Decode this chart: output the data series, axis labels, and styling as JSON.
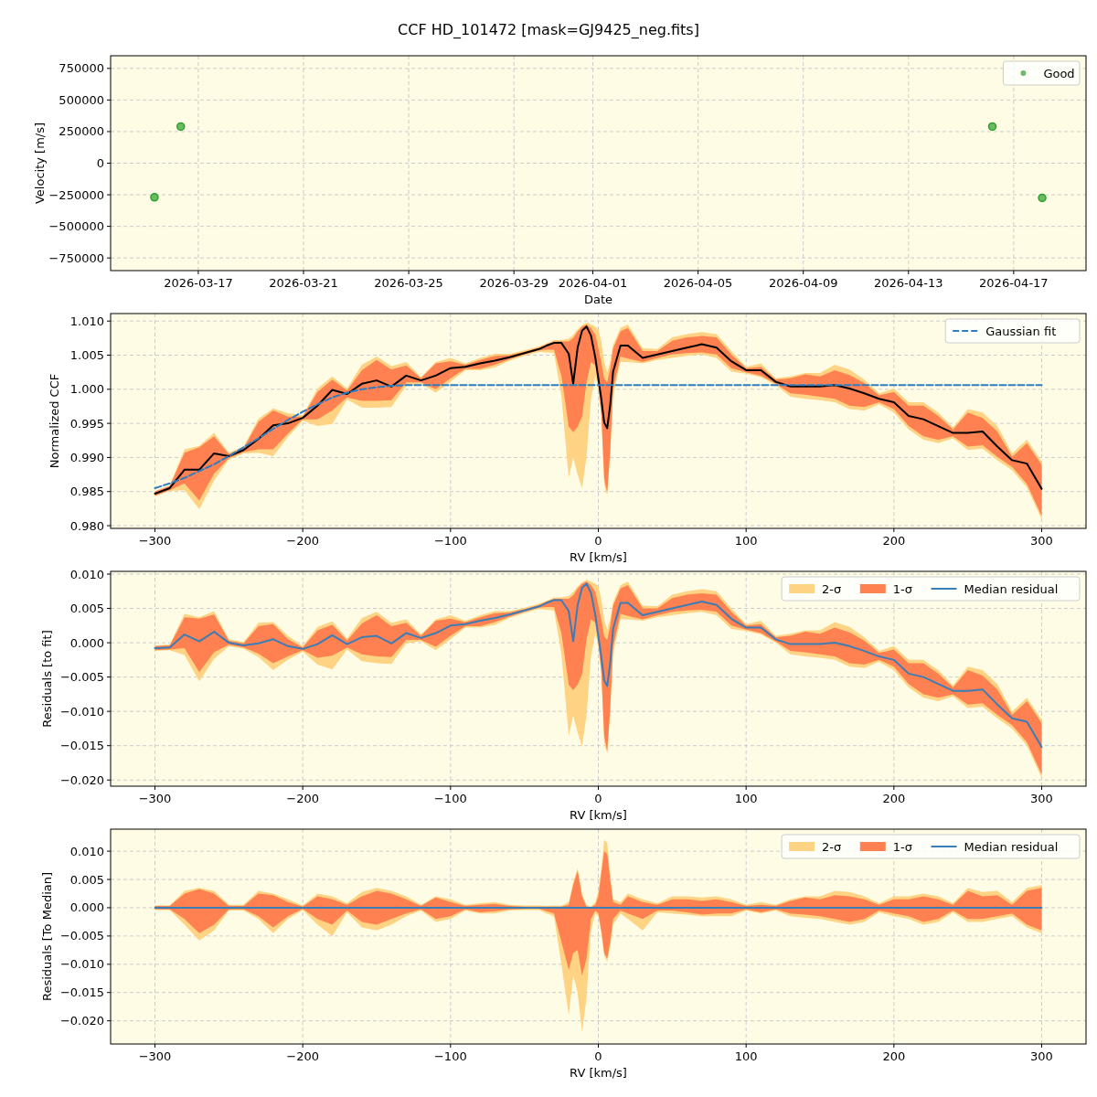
{
  "chart_data": [
    {
      "type": "scatter",
      "title": "CCF HD_101472 [mask=GJ9425_neg.fits]",
      "xlabel": "Date",
      "ylabel": "Velocity [m/s]",
      "x": [
        "2026-03-15T08:00",
        "2026-03-16T08:00",
        "2026-04-16T04:30",
        "2026-04-18T02:00"
      ],
      "series": [
        {
          "name": "Good",
          "color": "#2ca02c",
          "values": [
            -270000,
            290000,
            290000,
            -275000
          ]
        }
      ],
      "xlim": [
        "2026-03-13T16:00",
        "2026-04-19T18:00"
      ],
      "xticks": [
        "2026-03-17",
        "2026-03-21",
        "2026-03-25",
        "2026-03-29",
        "2026-04-01",
        "2026-04-05",
        "2026-04-09",
        "2026-04-13",
        "2026-04-17"
      ],
      "ylim": [
        -850000,
        850000
      ],
      "yticks": [
        {
          "value": -750000,
          "label": "−750000"
        },
        {
          "value": -500000,
          "label": "−500000"
        },
        {
          "value": -250000,
          "label": "−250000"
        },
        0,
        250000,
        500000,
        750000
      ],
      "grid": true,
      "legend": "top right",
      "marker": "circle"
    },
    {
      "type": "line",
      "xlabel": "RV [km/s]",
      "ylabel": "Normalized CCF",
      "x": [
        -300,
        -290,
        -280,
        -270,
        -260,
        -250,
        -240,
        -230,
        -220,
        -210,
        -200,
        -190,
        -180,
        -170,
        -160,
        -150,
        -140,
        -130,
        -120,
        -110,
        -100,
        -90,
        -80,
        -70,
        -60,
        -50,
        -40,
        -35,
        -30,
        -25,
        -20,
        -17,
        -14,
        -11,
        -8,
        -5,
        -2,
        0,
        2,
        4,
        6,
        8,
        10,
        15,
        20,
        30,
        40,
        50,
        60,
        70,
        80,
        90,
        100,
        110,
        120,
        130,
        140,
        150,
        160,
        170,
        180,
        190,
        200,
        210,
        220,
        230,
        240,
        250,
        260,
        270,
        280,
        290,
        300
      ],
      "series": [
        {
          "type": "area",
          "color": "#fed383",
          "values": [
            null,
            null,
            null,
            null,
            null,
            null,
            null,
            null,
            null,
            null,
            null,
            null,
            null,
            null,
            null,
            null,
            null,
            null,
            null,
            null,
            null,
            null,
            null,
            null,
            null,
            null,
            null,
            null,
            null,
            null,
            null,
            null,
            null,
            null,
            null,
            null,
            null,
            null,
            null,
            null,
            null,
            null,
            null,
            null,
            null,
            null,
            null,
            null,
            null,
            null,
            null,
            null,
            null,
            null,
            null,
            null,
            null,
            null,
            null,
            null,
            null,
            null,
            null,
            null,
            null,
            null,
            null,
            null,
            null,
            null,
            null,
            null,
            null
          ],
          "lower": [
            0.9843,
            0.9851,
            0.9852,
            0.9824,
            0.9866,
            0.9897,
            0.9906,
            0.9907,
            0.9902,
            0.993,
            0.9954,
            0.9946,
            0.9949,
            0.9985,
            0.9973,
            0.9973,
            0.9974,
            1.0005,
            1.0008,
            0.9995,
            1.0011,
            1.0028,
            1.0028,
            1.0032,
            1.0042,
            1.0049,
            1.0055,
            1.0054,
            1.0053,
            0.999,
            0.987,
            0.99,
            0.9875,
            0.9855,
            0.99,
            0.9985,
            1.002,
            1.0,
            0.996,
            0.986,
            0.9845,
            0.99,
            0.999,
            1.004,
            1.004,
            1.0038,
            1.0043,
            1.0046,
            1.0049,
            1.0051,
            1.0046,
            1.0026,
            1.0023,
            1.0018,
            1.0006,
            0.9989,
            0.9986,
            0.9984,
            0.9981,
            0.9971,
            0.9969,
            0.9978,
            0.9966,
            0.9941,
            0.9926,
            0.9921,
            0.9928,
            0.9911,
            0.9913,
            0.9896,
            0.9881,
            0.9856,
            0.9809
          ],
          "upper": [
            0.9851,
            0.9859,
            0.9912,
            0.9917,
            0.9936,
            0.9907,
            0.9916,
            0.9957,
            0.9972,
            0.9965,
            0.9962,
            1.0001,
            1.0019,
            1.0001,
            1.0036,
            1.0048,
            1.0034,
            1.004,
            1.0018,
            1.004,
            1.0046,
            1.0038,
            1.0046,
            1.0052,
            1.0052,
            1.0057,
            1.0063,
            1.0067,
            1.0072,
            1.0072,
            1.0074,
            1.008,
            1.0088,
            1.0094,
            1.0098,
            1.0095,
            1.0092,
            1.0088,
            1.007,
            1.004,
            1.0025,
            1.004,
            1.0065,
            1.009,
            1.0095,
            1.006,
            1.0059,
            1.0076,
            1.0081,
            1.0084,
            1.0081,
            1.0056,
            1.0033,
            1.0038,
            1.0016,
            1.0019,
            1.0024,
            1.0024,
            1.0036,
            1.0029,
            1.0014,
            0.9994,
            1.0001,
            0.9981,
            0.9981,
            0.9966,
            0.9944,
            0.9971,
            0.9966,
            0.9946,
            0.9906,
            0.9926,
            0.9894
          ]
        },
        {
          "type": "area",
          "color": "#ff8050",
          "values": [
            null,
            null,
            null,
            null,
            null,
            null,
            null,
            null,
            null,
            null,
            null,
            null,
            null,
            null,
            null,
            null,
            null,
            null,
            null,
            null,
            null,
            null,
            null,
            null,
            null,
            null,
            null,
            null,
            null,
            null,
            null,
            null,
            null,
            null,
            null,
            null,
            null,
            null,
            null,
            null,
            null,
            null,
            null,
            null,
            null,
            null,
            null,
            null,
            null,
            null,
            null,
            null,
            null,
            null,
            null,
            null,
            null,
            null,
            null,
            null,
            null,
            null,
            null,
            null,
            null,
            null,
            null,
            null,
            null,
            null,
            null,
            null,
            null
          ],
          "lower": [
            0.9844,
            0.9852,
            0.9862,
            0.9837,
            0.9876,
            0.9899,
            0.9908,
            0.9912,
            0.9912,
            0.9935,
            0.9956,
            0.9956,
            0.9969,
            0.9988,
            0.9983,
            0.9983,
            0.9984,
            1.001,
            1.001,
            1.0,
            1.0016,
            1.003,
            1.003,
            1.0036,
            1.0044,
            1.0051,
            1.0057,
            1.0058,
            1.0058,
            1.002,
            0.9945,
            0.9937,
            0.9945,
            0.996,
            1.001,
            1.004,
            1.0035,
            1.0005,
            0.9965,
            0.987,
            0.9848,
            0.991,
            1.0,
            1.0048,
            1.0045,
            1.004,
            1.0046,
            1.0051,
            1.0053,
            1.0054,
            1.0051,
            1.0031,
            1.0025,
            1.002,
            1.0008,
            0.9994,
            0.9992,
            0.9989,
            0.9986,
            0.9976,
            0.9974,
            0.9981,
            0.9971,
            0.9946,
            0.9931,
            0.9926,
            0.9931,
            0.9916,
            0.9918,
            0.9901,
            0.9886,
            0.9861,
            0.9814
          ],
          "upper": [
            0.985,
            0.9858,
            0.9907,
            0.9915,
            0.9931,
            0.9905,
            0.9914,
            0.9952,
            0.9969,
            0.996,
            0.996,
            0.9996,
            1.0014,
            0.9998,
            1.0028,
            1.0043,
            1.0029,
            1.0035,
            1.0016,
            1.0038,
            1.0041,
            1.0036,
            1.0043,
            1.0049,
            1.005,
            1.0055,
            1.0061,
            1.0066,
            1.007,
            1.007,
            1.007,
            1.0075,
            1.0085,
            1.0092,
            1.0095,
            1.009,
            1.008,
            1.006,
            1.004,
            1.0015,
            1.001,
            1.003,
            1.006,
            1.0085,
            1.009,
            1.0056,
            1.0056,
            1.0071,
            1.0076,
            1.0078,
            1.0076,
            1.0051,
            1.0031,
            1.0033,
            1.0014,
            1.0016,
            1.0022,
            1.0019,
            1.0028,
            1.0021,
            1.0009,
            0.9991,
            0.9996,
            0.9976,
            0.9976,
            0.9961,
            0.9941,
            0.9966,
            0.9958,
            0.9938,
            0.9901,
            0.9921,
            0.9889
          ]
        },
        {
          "color": "#000000",
          "values": [
            0.9847,
            0.9855,
            0.9882,
            0.9882,
            0.9906,
            0.9902,
            0.9911,
            0.9927,
            0.9947,
            0.995,
            0.9958,
            0.9976,
            0.9999,
            0.9993,
            1.0008,
            1.0013,
            1.0004,
            1.002,
            1.0013,
            1.002,
            1.0031,
            1.0033,
            1.0038,
            1.0042,
            1.0047,
            1.0053,
            1.0059,
            1.0064,
            1.0068,
            1.0068,
            1.0052,
            1.0008,
            1.0061,
            1.0086,
            1.0092,
            1.0079,
            1.0046,
            1.0016,
            0.9986,
            0.9951,
            0.9943,
            0.9976,
            1.0026,
            1.0064,
            1.0064,
            1.0046,
            1.0051,
            1.0056,
            1.0061,
            1.0066,
            1.0061,
            1.0041,
            1.0028,
            1.0028,
            1.0011,
            1.0004,
            1.0004,
            1.0004,
            1.0006,
            1.0001,
            0.9994,
            0.9986,
            0.9981,
            0.9961,
            0.9956,
            0.9946,
            0.9936,
            0.9936,
            0.9938,
            0.9916,
            0.9896,
            0.9891,
            0.9854
          ]
        },
        {
          "name": "Gaussian fit",
          "color": "#2f7dbf",
          "line_style": "dashed",
          "x": [
            -300,
            -290,
            -280,
            -270,
            -260,
            -250,
            -240,
            -230,
            -220,
            -210,
            -200,
            -190,
            -180,
            -170,
            -160,
            -150,
            -140,
            -130,
            300
          ],
          "values": [
            0.9855,
            0.9862,
            0.987,
            0.988,
            0.989,
            0.9902,
            0.9915,
            0.9928,
            0.9942,
            0.9955,
            0.9967,
            0.9978,
            0.9988,
            0.9995,
            1.0,
            1.0003,
            1.0005,
            1.0006,
            1.0006
          ]
        }
      ],
      "xlim": [
        -330,
        330
      ],
      "xticks": [
        {
          "value": -300,
          "label": "−300"
        },
        {
          "value": -200,
          "label": "−200"
        },
        {
          "value": -100,
          "label": "−100"
        },
        0,
        100,
        200,
        300
      ],
      "ylim": [
        0.9796,
        1.0111
      ],
      "yticks": [
        {
          "value": 0.98,
          "label": "0.980"
        },
        {
          "value": 0.985,
          "label": "0.985"
        },
        {
          "value": 0.99,
          "label": "0.990"
        },
        {
          "value": 0.995,
          "label": "0.995"
        },
        {
          "value": 1.0,
          "label": "1.000"
        },
        {
          "value": 1.005,
          "label": "1.005"
        },
        {
          "value": 1.01,
          "label": "1.010"
        }
      ],
      "grid": true,
      "legend": "top right"
    },
    {
      "type": "line",
      "xlabel": "RV [km/s]",
      "ylabel": "Residuals [to fit]",
      "x": [
        -300,
        -290,
        -280,
        -270,
        -260,
        -250,
        -240,
        -230,
        -220,
        -210,
        -200,
        -190,
        -180,
        -170,
        -160,
        -150,
        -140,
        -130,
        -120,
        -110,
        -100,
        -90,
        -80,
        -70,
        -60,
        -50,
        -40,
        -35,
        -30,
        -25,
        -20,
        -17,
        -14,
        -11,
        -8,
        -5,
        -2,
        0,
        2,
        4,
        6,
        8,
        10,
        15,
        20,
        30,
        40,
        50,
        60,
        70,
        80,
        90,
        100,
        110,
        120,
        130,
        140,
        150,
        160,
        170,
        180,
        190,
        200,
        210,
        220,
        230,
        240,
        250,
        260,
        270,
        280,
        290,
        300
      ],
      "series": [
        {
          "type": "area",
          "name": "2-σ",
          "color": "#fed383",
          "values": [
            null,
            null,
            null,
            null,
            null,
            null,
            null,
            null,
            null,
            null,
            null,
            null,
            null,
            null,
            null,
            null,
            null,
            null,
            null,
            null,
            null,
            null,
            null,
            null,
            null,
            null,
            null,
            null,
            null,
            null,
            null,
            null,
            null,
            null,
            null,
            null,
            null,
            null,
            null,
            null,
            null,
            null,
            null,
            null,
            null,
            null,
            null,
            null,
            null,
            null,
            null,
            null,
            null,
            null,
            null,
            null,
            null,
            null,
            null,
            null,
            null,
            null,
            null,
            null,
            null,
            null,
            null,
            null,
            null,
            null,
            null,
            null,
            null
          ],
          "lower": [
            -0.0012,
            -0.0011,
            -0.0018,
            -0.0056,
            -0.0024,
            -0.0005,
            -0.0009,
            -0.0021,
            -0.004,
            -0.0025,
            -0.0013,
            -0.0032,
            -0.0039,
            -0.001,
            -0.0027,
            -0.003,
            -0.0031,
            -0.0001,
            0.0002,
            -0.0011,
            0.0005,
            0.0022,
            0.0022,
            0.0026,
            0.0036,
            0.0043,
            0.0049,
            0.0048,
            0.0047,
            -0.0016,
            -0.0136,
            -0.0106,
            -0.0131,
            -0.0151,
            -0.0106,
            -0.0021,
            0.0014,
            -0.0006,
            -0.0046,
            -0.0146,
            -0.0161,
            -0.0106,
            -0.0016,
            0.0034,
            0.0034,
            0.0032,
            0.0037,
            0.004,
            0.0043,
            0.0045,
            0.004,
            0.002,
            0.0017,
            0.0012,
            0.0,
            -0.0017,
            -0.002,
            -0.0022,
            -0.0025,
            -0.0035,
            -0.0037,
            -0.0028,
            -0.004,
            -0.0065,
            -0.008,
            -0.0085,
            -0.0078,
            -0.0095,
            -0.0093,
            -0.011,
            -0.0125,
            -0.015,
            -0.0197
          ],
          "upper": [
            -0.0004,
            -0.0003,
            0.0042,
            0.0037,
            0.0046,
            0.0005,
            0.0001,
            0.0029,
            0.003,
            0.001,
            -0.0005,
            0.0023,
            0.0031,
            0.0006,
            0.0036,
            0.0045,
            0.0029,
            0.0034,
            0.0012,
            0.0034,
            0.004,
            0.0032,
            0.004,
            0.0046,
            0.0046,
            0.0051,
            0.0057,
            0.0061,
            0.0066,
            0.0066,
            0.0068,
            0.0074,
            0.0082,
            0.0088,
            0.0092,
            0.0089,
            0.0086,
            0.0082,
            0.0064,
            0.0034,
            0.0019,
            0.0034,
            0.0059,
            0.0084,
            0.0089,
            0.0054,
            0.0053,
            0.007,
            0.0075,
            0.0078,
            0.0075,
            0.005,
            0.0027,
            0.0032,
            0.001,
            0.0013,
            0.0018,
            0.0018,
            0.003,
            0.0023,
            0.0008,
            -0.0012,
            -0.0005,
            -0.0025,
            -0.0025,
            -0.004,
            -0.0062,
            -0.0035,
            -0.004,
            -0.006,
            -0.01,
            -0.008,
            -0.0112
          ]
        },
        {
          "type": "area",
          "name": "1-σ",
          "color": "#ff8050",
          "values": [
            null,
            null,
            null,
            null,
            null,
            null,
            null,
            null,
            null,
            null,
            null,
            null,
            null,
            null,
            null,
            null,
            null,
            null,
            null,
            null,
            null,
            null,
            null,
            null,
            null,
            null,
            null,
            null,
            null,
            null,
            null,
            null,
            null,
            null,
            null,
            null,
            null,
            null,
            null,
            null,
            null,
            null,
            null,
            null,
            null,
            null,
            null,
            null,
            null,
            null,
            null,
            null,
            null,
            null,
            null,
            null,
            null,
            null,
            null,
            null,
            null,
            null,
            null,
            null,
            null,
            null,
            null,
            null,
            null,
            null,
            null,
            null,
            null
          ],
          "lower": [
            -0.0011,
            -0.001,
            -0.0008,
            -0.0043,
            -0.0014,
            -0.0003,
            -0.0007,
            -0.0016,
            -0.003,
            -0.002,
            -0.0011,
            -0.0022,
            -0.0019,
            -0.0007,
            -0.0017,
            -0.002,
            -0.0021,
            0.0004,
            0.0004,
            -0.0006,
            0.001,
            0.0024,
            0.0024,
            0.003,
            0.0038,
            0.0045,
            0.0051,
            0.0052,
            0.0052,
            0.0014,
            -0.0061,
            -0.0069,
            -0.0061,
            -0.0046,
            0.0004,
            0.0034,
            0.0029,
            -0.0001,
            -0.0041,
            -0.0136,
            -0.0158,
            -0.0096,
            -0.0006,
            0.0042,
            0.0039,
            0.0034,
            0.004,
            0.0045,
            0.0047,
            0.0048,
            0.0045,
            0.0025,
            0.0019,
            0.0014,
            0.0002,
            -0.0012,
            -0.0014,
            -0.0017,
            -0.002,
            -0.003,
            -0.0032,
            -0.0025,
            -0.0035,
            -0.006,
            -0.0075,
            -0.008,
            -0.0075,
            -0.009,
            -0.0088,
            -0.0105,
            -0.012,
            -0.0145,
            -0.0192
          ],
          "upper": [
            -0.0005,
            -0.0004,
            0.0037,
            0.0035,
            0.0041,
            0.0003,
            -0.0001,
            0.0024,
            0.0027,
            0.0005,
            -0.0007,
            0.0018,
            0.0026,
            0.0003,
            0.0028,
            0.004,
            0.0024,
            0.0029,
            0.001,
            0.0032,
            0.0035,
            0.003,
            0.0037,
            0.0043,
            0.0044,
            0.0049,
            0.0055,
            0.006,
            0.0064,
            0.0064,
            0.0064,
            0.0069,
            0.0079,
            0.0086,
            0.0089,
            0.0084,
            0.0074,
            0.0054,
            0.0034,
            0.0009,
            0.0004,
            0.0024,
            0.0054,
            0.0079,
            0.0084,
            0.005,
            0.005,
            0.0065,
            0.007,
            0.0072,
            0.007,
            0.0045,
            0.0025,
            0.0027,
            0.0008,
            0.001,
            0.0016,
            0.0013,
            0.0022,
            0.0015,
            0.0003,
            -0.0015,
            -0.001,
            -0.003,
            -0.003,
            -0.0045,
            -0.0065,
            -0.004,
            -0.0048,
            -0.0068,
            -0.0105,
            -0.0085,
            -0.0117
          ]
        },
        {
          "name": "Median residual",
          "color": "#3b7db5",
          "values": [
            -0.0008,
            -0.0007,
            0.0012,
            0.0002,
            0.0016,
            0.0,
            -0.0004,
            -0.0001,
            0.0005,
            -0.0005,
            -0.0009,
            -0.0002,
            0.0011,
            -0.0002,
            0.0008,
            0.001,
            -0.0001,
            0.0014,
            0.0007,
            0.0014,
            0.0025,
            0.0027,
            0.0032,
            0.0036,
            0.0041,
            0.0047,
            0.0053,
            0.0058,
            0.0062,
            0.0062,
            0.0046,
            0.0002,
            0.0055,
            0.008,
            0.0086,
            0.0073,
            0.004,
            0.001,
            -0.002,
            -0.0055,
            -0.0063,
            -0.003,
            0.002,
            0.0058,
            0.0058,
            0.004,
            0.0045,
            0.005,
            0.0055,
            0.006,
            0.0055,
            0.0035,
            0.0022,
            0.0022,
            0.0005,
            -0.0002,
            -0.0002,
            -0.0002,
            0.0,
            -0.0005,
            -0.0012,
            -0.002,
            -0.0025,
            -0.0045,
            -0.005,
            -0.006,
            -0.007,
            -0.007,
            -0.0068,
            -0.009,
            -0.011,
            -0.0115,
            -0.0152
          ]
        }
      ],
      "xlim": [
        -330,
        330
      ],
      "xticks": [
        {
          "value": -300,
          "label": "−300"
        },
        {
          "value": -200,
          "label": "−200"
        },
        {
          "value": -100,
          "label": "−100"
        },
        0,
        100,
        200,
        300
      ],
      "ylim": [
        -0.0209,
        0.0104
      ],
      "yticks": [
        {
          "value": -0.02,
          "label": "−0.020"
        },
        {
          "value": -0.015,
          "label": "−0.015"
        },
        {
          "value": -0.01,
          "label": "−0.010"
        },
        {
          "value": -0.005,
          "label": "−0.005"
        },
        {
          "value": 0,
          "label": "0.000"
        },
        {
          "value": 0.005,
          "label": "0.005"
        },
        {
          "value": 0.01,
          "label": "0.010"
        }
      ],
      "grid": true,
      "legend": "top right"
    },
    {
      "type": "line",
      "xlabel": "RV [km/s]",
      "ylabel": "Residuals [To Median]",
      "x": [
        -300,
        -290,
        -280,
        -270,
        -260,
        -250,
        -240,
        -230,
        -220,
        -210,
        -200,
        -190,
        -180,
        -170,
        -160,
        -150,
        -140,
        -130,
        -120,
        -110,
        -100,
        -90,
        -80,
        -70,
        -60,
        -50,
        -40,
        -35,
        -30,
        -25,
        -20,
        -17,
        -14,
        -11,
        -8,
        -5,
        -2,
        0,
        2,
        4,
        6,
        8,
        10,
        15,
        20,
        30,
        40,
        50,
        60,
        70,
        80,
        90,
        100,
        110,
        120,
        130,
        140,
        150,
        160,
        170,
        180,
        190,
        200,
        210,
        220,
        230,
        240,
        250,
        260,
        270,
        280,
        290,
        300
      ],
      "series": [
        {
          "type": "area",
          "name": "2-σ",
          "color": "#fed383",
          "values": [
            null,
            null,
            null,
            null,
            null,
            null,
            null,
            null,
            null,
            null,
            null,
            null,
            null,
            null,
            null,
            null,
            null,
            null,
            null,
            null,
            null,
            null,
            null,
            null,
            null,
            null,
            null,
            null,
            null,
            null,
            null,
            null,
            null,
            null,
            null,
            null,
            null,
            null,
            null,
            null,
            null,
            null,
            null,
            null,
            null,
            null,
            null,
            null,
            null,
            null,
            null,
            null,
            null,
            null,
            null,
            null,
            null,
            null,
            null,
            null,
            null,
            null,
            null,
            null,
            null,
            null,
            null,
            null,
            null,
            null,
            null,
            null,
            null
          ],
          "lower": [
            -0.0004,
            -0.0004,
            -0.003,
            -0.0058,
            -0.004,
            -0.0005,
            -0.0005,
            -0.002,
            -0.0045,
            -0.002,
            -0.0004,
            -0.003,
            -0.005,
            -0.0008,
            -0.0035,
            -0.004,
            -0.003,
            -0.0015,
            -0.0005,
            -0.0025,
            -0.002,
            -0.0005,
            -0.001,
            -0.001,
            -0.0005,
            -0.0004,
            -0.0004,
            -0.001,
            -0.0015,
            -0.01,
            -0.019,
            -0.012,
            -0.015,
            -0.022,
            -0.016,
            -0.004,
            -0.001,
            -0.0015,
            -0.0045,
            -0.0085,
            -0.0095,
            -0.007,
            -0.003,
            -0.001,
            -0.002,
            -0.004,
            -0.0008,
            -0.001,
            -0.0012,
            -0.0015,
            -0.0015,
            -0.0015,
            -0.0005,
            -0.001,
            -0.0005,
            -0.0015,
            -0.0018,
            -0.002,
            -0.0025,
            -0.003,
            -0.0025,
            -0.0008,
            -0.0015,
            -0.002,
            -0.003,
            -0.0025,
            -0.0008,
            -0.0025,
            -0.0025,
            -0.002,
            -0.0015,
            -0.0035,
            -0.0045
          ],
          "upper": [
            0.0004,
            0.0004,
            0.003,
            0.0035,
            0.003,
            0.0005,
            0.0005,
            0.003,
            0.0025,
            0.0015,
            0.0004,
            0.0025,
            0.002,
            0.0008,
            0.0028,
            0.0035,
            0.003,
            0.002,
            0.0005,
            0.002,
            0.0015,
            0.0005,
            0.0008,
            0.001,
            0.0005,
            0.0004,
            0.0004,
            0.0003,
            0.0004,
            0.0003,
            0.001,
            0.0045,
            0.007,
            0.0025,
            0.0004,
            0.0002,
            0.001,
            0.003,
            0.007,
            0.012,
            0.0115,
            0.006,
            0.0015,
            0.001,
            0.0025,
            0.0015,
            0.0008,
            0.002,
            0.002,
            0.0018,
            0.002,
            0.0015,
            0.0005,
            0.001,
            0.0005,
            0.0015,
            0.002,
            0.002,
            0.003,
            0.0028,
            0.002,
            0.0008,
            0.002,
            0.002,
            0.0025,
            0.002,
            0.0008,
            0.0035,
            0.0028,
            0.003,
            0.001,
            0.0035,
            0.004
          ]
        },
        {
          "type": "area",
          "name": "1-σ",
          "color": "#ff8050",
          "values": [
            null,
            null,
            null,
            null,
            null,
            null,
            null,
            null,
            null,
            null,
            null,
            null,
            null,
            null,
            null,
            null,
            null,
            null,
            null,
            null,
            null,
            null,
            null,
            null,
            null,
            null,
            null,
            null,
            null,
            null,
            null,
            null,
            null,
            null,
            null,
            null,
            null,
            null,
            null,
            null,
            null,
            null,
            null,
            null,
            null,
            null,
            null,
            null,
            null,
            null,
            null,
            null,
            null,
            null,
            null,
            null,
            null,
            null,
            null,
            null,
            null,
            null,
            null,
            null,
            null,
            null,
            null,
            null,
            null,
            null,
            null,
            null,
            null
          ],
          "lower": [
            -0.0003,
            -0.0003,
            -0.002,
            -0.0045,
            -0.003,
            -0.0003,
            -0.0003,
            -0.0015,
            -0.0035,
            -0.0015,
            -0.0002,
            -0.002,
            -0.003,
            -0.0005,
            -0.0025,
            -0.003,
            -0.002,
            -0.001,
            -0.0003,
            -0.002,
            -0.0015,
            -0.0003,
            -0.0008,
            -0.0006,
            -0.0003,
            -0.0002,
            -0.0002,
            -0.0006,
            -0.001,
            -0.006,
            -0.011,
            -0.008,
            -0.0075,
            -0.012,
            -0.009,
            -0.002,
            -0.0005,
            -0.001,
            -0.004,
            -0.008,
            -0.009,
            -0.006,
            -0.002,
            -0.0005,
            -0.001,
            -0.002,
            -0.0005,
            -0.0005,
            -0.0008,
            -0.0012,
            -0.001,
            -0.001,
            -0.0003,
            -0.0008,
            -0.0003,
            -0.001,
            -0.0012,
            -0.0015,
            -0.002,
            -0.0025,
            -0.002,
            -0.0005,
            -0.001,
            -0.0015,
            -0.0025,
            -0.002,
            -0.0005,
            -0.002,
            -0.002,
            -0.0015,
            -0.001,
            -0.003,
            -0.004
          ],
          "upper": [
            0.0003,
            0.0003,
            0.0025,
            0.0033,
            0.0025,
            0.0003,
            0.0003,
            0.0025,
            0.0022,
            0.001,
            0.0002,
            0.002,
            0.0015,
            0.0005,
            0.002,
            0.003,
            0.0025,
            0.0015,
            0.0003,
            0.0018,
            0.001,
            0.0003,
            0.0005,
            0.0007,
            0.0003,
            0.0002,
            0.0002,
            0.0002,
            0.0002,
            0.0002,
            0.0005,
            0.004,
            0.0065,
            0.002,
            0.0002,
            0.0001,
            0.0005,
            0.002,
            0.006,
            0.01,
            0.0095,
            0.005,
            0.001,
            0.0005,
            0.002,
            0.001,
            0.0005,
            0.0015,
            0.0015,
            0.0012,
            0.0015,
            0.001,
            0.0003,
            0.0005,
            0.0003,
            0.0012,
            0.0018,
            0.0015,
            0.0022,
            0.002,
            0.0015,
            0.0005,
            0.0015,
            0.0015,
            0.002,
            0.0015,
            0.0005,
            0.003,
            0.002,
            0.0022,
            0.0005,
            0.003,
            0.0035
          ]
        },
        {
          "name": "Median residual",
          "color": "#3b7db5",
          "x": [
            -300,
            300
          ],
          "values": [
            0,
            0
          ]
        }
      ],
      "xlim": [
        -330,
        330
      ],
      "xticks": [
        {
          "value": -300,
          "label": "−300"
        },
        {
          "value": -200,
          "label": "−200"
        },
        {
          "value": -100,
          "label": "−100"
        },
        0,
        100,
        200,
        300
      ],
      "ylim": [
        -0.0241,
        0.0139
      ],
      "yticks": [
        {
          "value": -0.02,
          "label": "−0.020"
        },
        {
          "value": -0.015,
          "label": "−0.015"
        },
        {
          "value": -0.01,
          "label": "−0.010"
        },
        {
          "value": -0.005,
          "label": "−0.005"
        },
        {
          "value": 0,
          "label": "0.000"
        },
        {
          "value": 0.005,
          "label": "0.005"
        },
        {
          "value": 0.01,
          "label": "0.010"
        }
      ],
      "grid": true,
      "legend": "top right"
    }
  ]
}
